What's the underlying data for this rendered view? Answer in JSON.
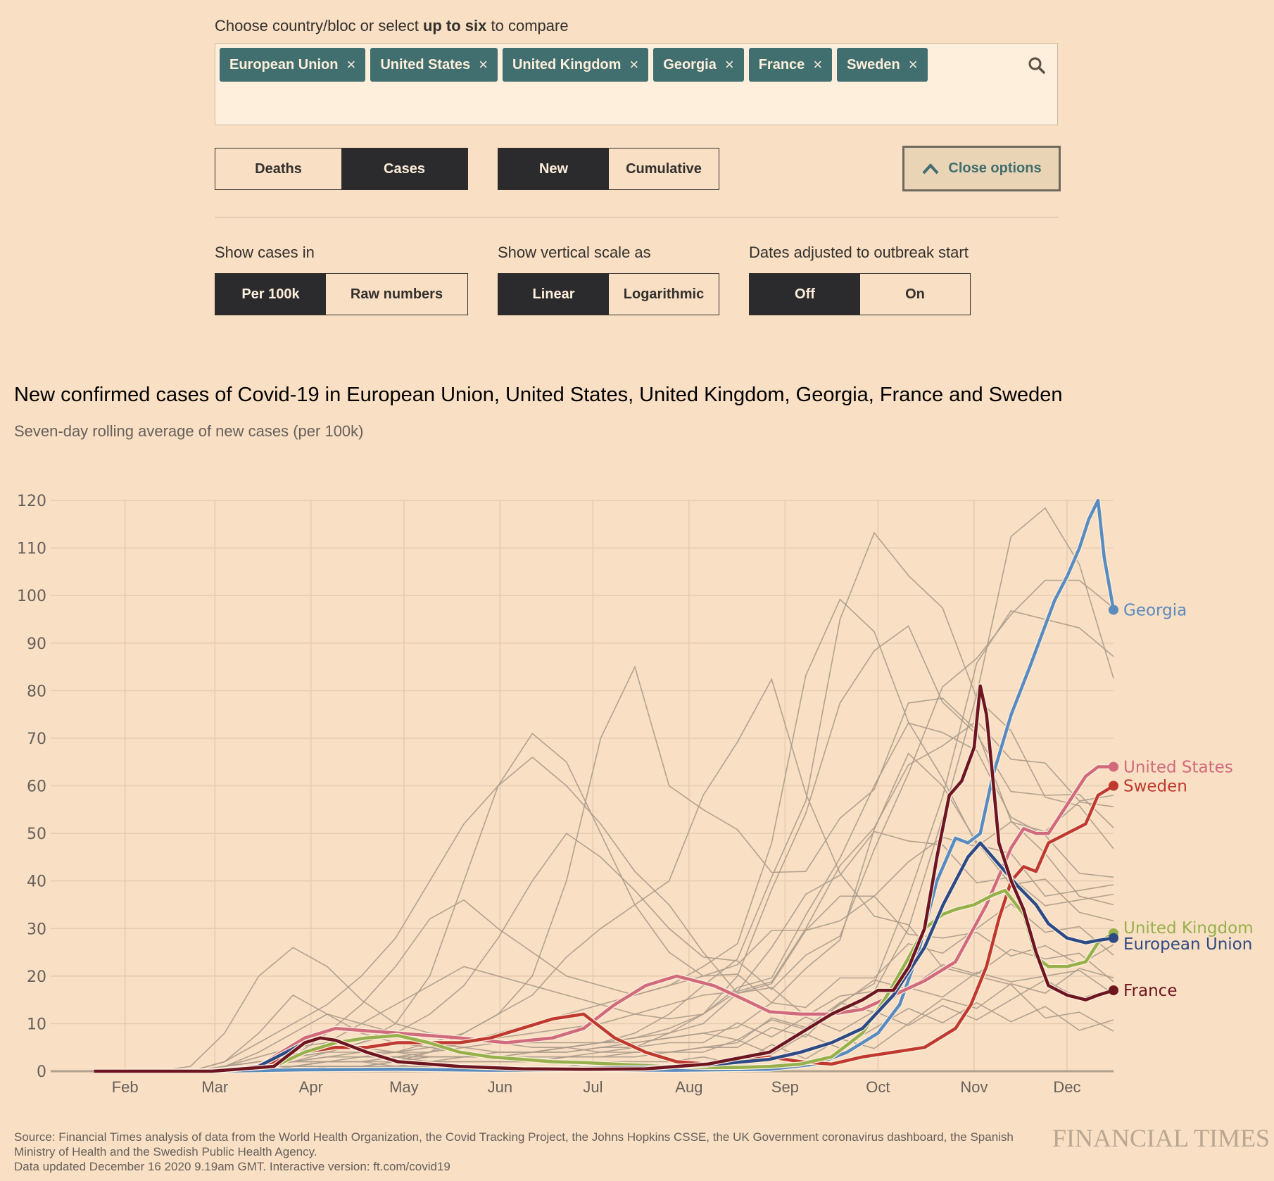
{
  "controls": {
    "prompt_pre": "Choose country/bloc or select ",
    "prompt_bold": "up to six",
    "prompt_post": " to compare",
    "chips": [
      "European Union",
      "United States",
      "United Kingdom",
      "Georgia",
      "France",
      "Sweden"
    ],
    "chip_remove_glyph": "×",
    "search_icon": "search-icon",
    "metric": {
      "options": [
        "Deaths",
        "Cases"
      ],
      "selected": "Cases"
    },
    "mode": {
      "options": [
        "New",
        "Cumulative"
      ],
      "selected": "New"
    },
    "close_options_label": "Close options",
    "show_cases_in": {
      "label": "Show cases in",
      "options": [
        "Per 100k",
        "Raw numbers"
      ],
      "selected": "Per 100k"
    },
    "vertical_scale": {
      "label": "Show vertical scale as",
      "options": [
        "Linear",
        "Logarithmic"
      ],
      "selected": "Linear"
    },
    "dates_adjusted": {
      "label": "Dates adjusted to outbreak start",
      "options": [
        "Off",
        "On"
      ],
      "selected": "Off"
    }
  },
  "chart_data": {
    "type": "line",
    "title": "New confirmed cases of Covid-19 in European Union, United States, United Kingdom, Georgia, France and Sweden",
    "subtitle": "Seven-day rolling average of new cases (per 100k)",
    "xlabel": "",
    "ylabel": "",
    "x_unit": "day of 2020 (day 1 = Jan 1)",
    "xlim": [
      8,
      351
    ],
    "ylim": [
      0,
      120
    ],
    "yticks": [
      0,
      10,
      20,
      30,
      40,
      50,
      60,
      70,
      80,
      90,
      100,
      110,
      120
    ],
    "xticks": [
      {
        "label": "Feb",
        "day": 32
      },
      {
        "label": "Mar",
        "day": 61
      },
      {
        "label": "Apr",
        "day": 92
      },
      {
        "label": "May",
        "day": 122
      },
      {
        "label": "Jun",
        "day": 153
      },
      {
        "label": "Jul",
        "day": 183
      },
      {
        "label": "Aug",
        "day": 214
      },
      {
        "label": "Sep",
        "day": 245
      },
      {
        "label": "Oct",
        "day": 275
      },
      {
        "label": "Nov",
        "day": 306
      },
      {
        "label": "Dec",
        "day": 336
      }
    ],
    "grid": true,
    "legend": "direct labels at line ends (right)",
    "series": [
      {
        "name": "Georgia",
        "color": "#5a8bbf",
        "x": [
          22,
          60,
          90,
          120,
          150,
          180,
          210,
          240,
          255,
          265,
          275,
          282,
          288,
          294,
          300,
          304,
          308,
          312,
          318,
          324,
          328,
          332,
          336,
          340,
          343,
          346,
          348,
          351
        ],
        "y": [
          0,
          0,
          0.3,
          0.4,
          0.2,
          0.3,
          0.2,
          0.4,
          1.5,
          4,
          8,
          14,
          25,
          40,
          49,
          48,
          50,
          62,
          75,
          85,
          92,
          99,
          104,
          110,
          116,
          120,
          108,
          97
        ]
      },
      {
        "name": "United States",
        "color": "#d06a7c",
        "x": [
          22,
          60,
          75,
          90,
          100,
          110,
          120,
          140,
          155,
          170,
          180,
          190,
          200,
          210,
          222,
          232,
          240,
          250,
          260,
          270,
          280,
          290,
          300,
          310,
          318,
          322,
          326,
          330,
          336,
          342,
          346,
          351
        ],
        "y": [
          0,
          0.1,
          1,
          7,
          9,
          8.5,
          8,
          7,
          6,
          7,
          9,
          14,
          18,
          20,
          18,
          15,
          12.5,
          12,
          12,
          13,
          16,
          19,
          23,
          35,
          47,
          51,
          50,
          50,
          56,
          62,
          64,
          64
        ]
      },
      {
        "name": "Sweden",
        "color": "#c0392f",
        "x": [
          22,
          60,
          75,
          90,
          100,
          110,
          120,
          140,
          150,
          160,
          170,
          180,
          190,
          200,
          210,
          220,
          230,
          240,
          250,
          260,
          270,
          280,
          290,
          300,
          305,
          310,
          314,
          318,
          322,
          326,
          330,
          336,
          342,
          346,
          351
        ],
        "y": [
          0,
          0,
          1,
          4,
          5,
          5,
          6,
          6,
          7,
          9,
          11,
          12,
          7,
          4,
          2,
          1.5,
          2,
          3,
          2,
          1.5,
          3,
          4,
          5,
          9,
          14,
          22,
          32,
          40,
          43,
          42,
          48,
          50,
          52,
          58,
          60
        ]
      },
      {
        "name": "United Kingdom",
        "color": "#96b14c",
        "x": [
          22,
          60,
          80,
          90,
          100,
          110,
          120,
          130,
          140,
          150,
          160,
          170,
          180,
          190,
          200,
          210,
          220,
          230,
          240,
          250,
          260,
          270,
          278,
          285,
          290,
          296,
          300,
          306,
          312,
          316,
          322,
          326,
          330,
          336,
          342,
          346,
          351
        ],
        "y": [
          0,
          0,
          1,
          4,
          6,
          7,
          7.5,
          6,
          4,
          3,
          2.5,
          2,
          1.8,
          1.5,
          1.2,
          1,
          0.8,
          0.8,
          1,
          1.5,
          3,
          8,
          16,
          24,
          30,
          33,
          34,
          35,
          37,
          38,
          33,
          24,
          22,
          22,
          23,
          27,
          29
        ]
      },
      {
        "name": "European Union",
        "color": "#2e4a84",
        "x": [
          22,
          60,
          75,
          90,
          95,
          100,
          110,
          120,
          140,
          160,
          180,
          200,
          220,
          240,
          250,
          260,
          270,
          280,
          290,
          296,
          300,
          304,
          308,
          312,
          316,
          320,
          326,
          330,
          336,
          342,
          346,
          351
        ],
        "y": [
          0,
          0,
          1,
          6,
          7,
          6.5,
          4,
          2,
          1,
          0.6,
          0.6,
          0.8,
          1.3,
          2.5,
          4,
          6,
          9,
          16,
          26,
          35,
          40,
          45,
          48,
          45,
          42,
          39,
          35,
          31,
          28,
          27,
          27.5,
          28
        ]
      },
      {
        "name": "France",
        "color": "#6e1522",
        "x": [
          22,
          60,
          80,
          90,
          95,
          100,
          110,
          120,
          140,
          160,
          180,
          200,
          220,
          240,
          250,
          260,
          270,
          275,
          280,
          285,
          290,
          294,
          298,
          302,
          306,
          308,
          310,
          312,
          314,
          318,
          322,
          326,
          330,
          336,
          342,
          346,
          351
        ],
        "y": [
          0,
          0,
          1,
          6,
          7,
          6.5,
          4,
          2,
          1,
          0.5,
          0.4,
          0.5,
          1.5,
          4,
          8,
          12,
          15,
          17,
          17,
          22,
          30,
          45,
          58,
          61,
          68,
          81,
          75,
          62,
          48,
          40,
          34,
          25,
          18,
          16,
          15,
          16,
          17
        ]
      }
    ],
    "background_series_color": "#aa9b8c",
    "background_series_note": "~200 other countries drawn in grey (sampled)",
    "background_series": [
      [
        0,
        0,
        0,
        1,
        8,
        20,
        26,
        22,
        15,
        10,
        8,
        7,
        6,
        5,
        5,
        4,
        4,
        4,
        5,
        5,
        6,
        8,
        12,
        20,
        35,
        60,
        85,
        100,
        95,
        90,
        88
      ],
      [
        0,
        0,
        0,
        0,
        2,
        6,
        10,
        14,
        20,
        28,
        40,
        52,
        60,
        66,
        60,
        52,
        42,
        35,
        25,
        18,
        16,
        14,
        15,
        20,
        30,
        50,
        80,
        110,
        120,
        105,
        85
      ],
      [
        0,
        0,
        0,
        0,
        0,
        1,
        3,
        8,
        14,
        22,
        32,
        36,
        30,
        25,
        20,
        18,
        16,
        18,
        22,
        30,
        48,
        80,
        100,
        90,
        75,
        60,
        50,
        45,
        40,
        38,
        36
      ],
      [
        0,
        0,
        0,
        0,
        1,
        2,
        3,
        4,
        6,
        10,
        20,
        40,
        60,
        71,
        65,
        50,
        35,
        25,
        20,
        18,
        16,
        20,
        30,
        50,
        70,
        60,
        45,
        40,
        38,
        35,
        30
      ],
      [
        0,
        0,
        0,
        0,
        0,
        0,
        0,
        1,
        1,
        2,
        4,
        8,
        12,
        20,
        40,
        70,
        85,
        60,
        55,
        50,
        45,
        42,
        50,
        60,
        75,
        80,
        70,
        55,
        45,
        40,
        35
      ],
      [
        0,
        0,
        0,
        0,
        0,
        0,
        1,
        2,
        3,
        4,
        6,
        8,
        12,
        16,
        24,
        30,
        35,
        40,
        58,
        70,
        80,
        60,
        40,
        35,
        30,
        25,
        20,
        15,
        12,
        10,
        10
      ],
      [
        0,
        0,
        0,
        0,
        1,
        4,
        8,
        12,
        10,
        8,
        6,
        5,
        4,
        4,
        5,
        6,
        8,
        12,
        18,
        26,
        40,
        60,
        95,
        110,
        105,
        95,
        80,
        70,
        60,
        55,
        50
      ],
      [
        0,
        0,
        0,
        0,
        0,
        1,
        2,
        4,
        6,
        8,
        12,
        18,
        28,
        40,
        50,
        45,
        38,
        30,
        24,
        20,
        18,
        22,
        30,
        45,
        65,
        80,
        90,
        96,
        100,
        104,
        95
      ],
      [
        0,
        0,
        0,
        0,
        0,
        1,
        3,
        6,
        10,
        14,
        18,
        22,
        20,
        18,
        16,
        14,
        12,
        11,
        12,
        16,
        22,
        32,
        48,
        60,
        70,
        72,
        65,
        55,
        48,
        44,
        40
      ],
      [
        0,
        0,
        0,
        0,
        2,
        8,
        16,
        12,
        8,
        6,
        5,
        4,
        3,
        3,
        3,
        4,
        5,
        8,
        12,
        20,
        35,
        55,
        75,
        90,
        92,
        80,
        70,
        62,
        58,
        55,
        52
      ],
      [
        0,
        0,
        0,
        0,
        0,
        0,
        1,
        2,
        2,
        3,
        4,
        6,
        8,
        10,
        12,
        14,
        16,
        18,
        20,
        24,
        28,
        32,
        36,
        40,
        44,
        46,
        48,
        50,
        52,
        55,
        58
      ],
      [
        0,
        0,
        0,
        0,
        0,
        1,
        2,
        3,
        4,
        4,
        5,
        6,
        7,
        8,
        9,
        10,
        12,
        14,
        16,
        20,
        26,
        34,
        42,
        48,
        50,
        46,
        42,
        40,
        38,
        36,
        34
      ],
      [
        0,
        0,
        0,
        0,
        1,
        3,
        5,
        6,
        5,
        4,
        3,
        3,
        3,
        4,
        5,
        6,
        7,
        8,
        10,
        14,
        20,
        28,
        34,
        36,
        32,
        28,
        26,
        25,
        24,
        24,
        25
      ],
      [
        0,
        0,
        0,
        0,
        0,
        1,
        2,
        2,
        2,
        2,
        3,
        3,
        4,
        4,
        5,
        6,
        7,
        9,
        12,
        16,
        22,
        30,
        40,
        52,
        62,
        70,
        72,
        68,
        64,
        60,
        58
      ],
      [
        0,
        0,
        0,
        0,
        0,
        0,
        1,
        1,
        1,
        2,
        2,
        3,
        3,
        4,
        4,
        5,
        6,
        7,
        8,
        10,
        12,
        15,
        18,
        22,
        26,
        28,
        30,
        32,
        30,
        28,
        26
      ],
      [
        0,
        0,
        0,
        0,
        1,
        2,
        3,
        4,
        4,
        4,
        4,
        5,
        6,
        6,
        6,
        6,
        6,
        7,
        8,
        9,
        10,
        12,
        14,
        16,
        18,
        20,
        22,
        24,
        26,
        24,
        22
      ],
      [
        0,
        0,
        0,
        0,
        0,
        1,
        1,
        2,
        2,
        3,
        3,
        3,
        4,
        4,
        4,
        5,
        5,
        6,
        6,
        7,
        8,
        9,
        10,
        11,
        12,
        13,
        14,
        15,
        16,
        16,
        15
      ],
      [
        0,
        0,
        0,
        0,
        0,
        0,
        1,
        1,
        1,
        1,
        2,
        2,
        2,
        2,
        3,
        3,
        3,
        4,
        4,
        5,
        6,
        7,
        8,
        9,
        10,
        11,
        12,
        12,
        12,
        11,
        10
      ],
      [
        0,
        0,
        0,
        0,
        0,
        1,
        2,
        3,
        3,
        3,
        2,
        2,
        2,
        2,
        3,
        3,
        4,
        4,
        5,
        6,
        8,
        10,
        12,
        14,
        16,
        18,
        20,
        22,
        20,
        18,
        17
      ],
      [
        0,
        0,
        0,
        0,
        1,
        2,
        2,
        2,
        2,
        1,
        1,
        1,
        1,
        1,
        1,
        2,
        2,
        2,
        3,
        3,
        4,
        5,
        6,
        8,
        10,
        12,
        14,
        16,
        18,
        20,
        22
      ]
    ],
    "end_labels": [
      {
        "name": "Georgia",
        "value": 97
      },
      {
        "name": "United States",
        "value": 64
      },
      {
        "name": "Sweden",
        "value": 60
      },
      {
        "name": "United Kingdom",
        "value": 29
      },
      {
        "name": "European Union",
        "value": 28
      },
      {
        "name": "France",
        "value": 17
      }
    ]
  },
  "footer": {
    "source": "Source: Financial Times analysis of data from the World Health Organization, the Covid Tracking Project, the Johns Hopkins CSSE, the UK Government coronavirus dashboard, the Spanish Ministry of Health and the Swedish Public Health Agency.",
    "updated": "Data updated December 16 2020 9.19am GMT. Interactive version: ft.com/covid19",
    "logo": "FINANCIAL TIMES"
  }
}
